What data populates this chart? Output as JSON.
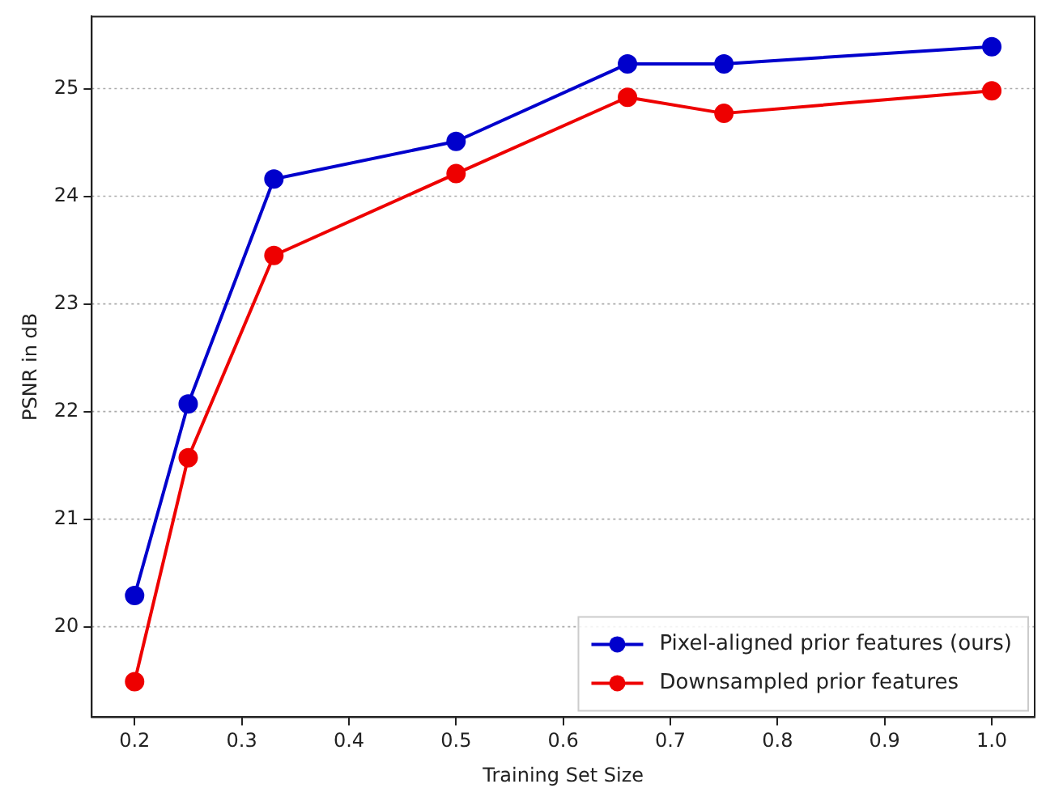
{
  "chart_data": {
    "type": "line",
    "xlabel": "Training Set Size",
    "ylabel": "PSNR in dB",
    "x": [
      0.2,
      0.25,
      0.33,
      0.5,
      0.66,
      0.75,
      1.0
    ],
    "series": [
      {
        "name": "Pixel-aligned prior features (ours)",
        "color": "#0000cc",
        "values": [
          20.29,
          22.07,
          24.16,
          24.51,
          25.23,
          25.23,
          25.39
        ]
      },
      {
        "name": "Downsampled prior features",
        "color": "#ee0000",
        "values": [
          19.49,
          21.57,
          23.45,
          24.21,
          24.92,
          24.77,
          24.98
        ]
      }
    ],
    "xlim": [
      0.16,
      1.04
    ],
    "xticks": [
      {
        "value": 0.2,
        "label": "0.2"
      },
      {
        "value": 0.3,
        "label": "0.3"
      },
      {
        "value": 0.4,
        "label": "0.4"
      },
      {
        "value": 0.5,
        "label": "0.5"
      },
      {
        "value": 0.6,
        "label": "0.6"
      },
      {
        "value": 0.7,
        "label": "0.7"
      },
      {
        "value": 0.8,
        "label": "0.8"
      },
      {
        "value": 0.9,
        "label": "0.9"
      },
      {
        "value": 1.0,
        "label": "1.0"
      }
    ],
    "ylim": [
      19.16,
      25.67
    ],
    "yticks": [
      20,
      21,
      22,
      23,
      24,
      25
    ],
    "grid": "y",
    "legend": "bottom right",
    "marker": "circle",
    "line_style": "solid"
  }
}
